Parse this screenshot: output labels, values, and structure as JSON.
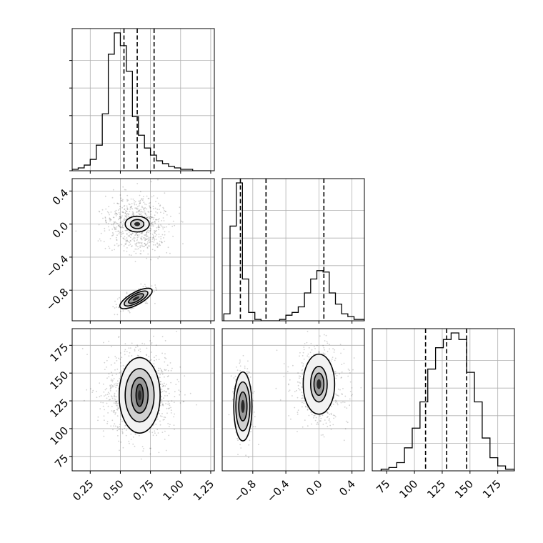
{
  "chart_data": {
    "type": "corner",
    "grid": true,
    "parameters": [
      {
        "range": [
          0.1,
          1.28
        ],
        "ticks": [
          0.25,
          0.5,
          0.75,
          1.0,
          1.25
        ],
        "tick_labels": [
          "0.25",
          "0.50",
          "0.75",
          "1.00",
          "1.25"
        ],
        "quantiles": [
          0.53,
          0.64,
          0.78
        ],
        "hist": {
          "edges": [
            0.1,
            0.15,
            0.2,
            0.25,
            0.3,
            0.35,
            0.4,
            0.45,
            0.5,
            0.55,
            0.6,
            0.65,
            0.7,
            0.75,
            0.8,
            0.85,
            0.9,
            0.95,
            1.0,
            1.05,
            1.1,
            1.15,
            1.2,
            1.25
          ],
          "counts": [
            1,
            2,
            4,
            8,
            18,
            40,
            82,
            97,
            88,
            70,
            38,
            25,
            16,
            11,
            7,
            5,
            3,
            2,
            1,
            1,
            0,
            0,
            0
          ]
        }
      },
      {
        "range": [
          -1.17,
          0.55
        ],
        "ticks": [
          -0.8,
          -0.4,
          0.0,
          0.4
        ],
        "tick_labels": [
          "−0.8",
          "−0.4",
          "0.0",
          "0.4"
        ],
        "quantiles": [
          -0.95,
          -0.64,
          0.06
        ],
        "hist": {
          "edges": [
            -1.15,
            -1.075,
            -1.0,
            -0.925,
            -0.85,
            -0.775,
            -0.7,
            -0.625,
            -0.55,
            -0.475,
            -0.4,
            -0.325,
            -0.25,
            -0.175,
            -0.1,
            -0.025,
            0.05,
            0.125,
            0.2,
            0.275,
            0.35,
            0.425,
            0.5,
            0.55
          ],
          "counts": [
            5,
            68,
            99,
            30,
            6,
            1,
            0,
            0,
            0,
            1,
            4,
            6,
            10,
            20,
            30,
            36,
            35,
            20,
            12,
            5,
            3,
            1,
            1
          ]
        }
      },
      {
        "range": [
          62,
          190
        ],
        "ticks": [
          75,
          100,
          125,
          150,
          175
        ],
        "tick_labels": [
          "75",
          "100",
          "125",
          "150",
          "175"
        ],
        "quantiles": [
          110,
          129,
          147
        ],
        "hist": {
          "edges": [
            70,
            77,
            84,
            91,
            98,
            105,
            112,
            119,
            126,
            133,
            140,
            147,
            154,
            161,
            168,
            175,
            182,
            190
          ],
          "counts": [
            1,
            2,
            5,
            14,
            26,
            42,
            62,
            75,
            80,
            84,
            80,
            60,
            42,
            20,
            8,
            3,
            1
          ]
        }
      }
    ],
    "joint": [
      {
        "x": 0,
        "y": 1,
        "clusters": [
          {
            "cx": 0.64,
            "cy": 0.0,
            "sx": 0.12,
            "sy": 0.17,
            "rot": 0,
            "n": 700,
            "levels": [
              [
                0.1,
                0.095
              ],
              [
                0.055,
                0.055
              ]
            ]
          },
          {
            "cx": 0.63,
            "cy": -0.9,
            "sx": 0.08,
            "sy": 0.05,
            "rot": -0.5,
            "n": 250,
            "levels": [
              [
                0.15,
                0.075
              ],
              [
                0.11,
                0.055
              ],
              [
                0.07,
                0.035
              ]
            ]
          }
        ]
      },
      {
        "x": 0,
        "y": 2,
        "clusters": [
          {
            "cx": 0.66,
            "cy": 130,
            "sx": 0.14,
            "sy": 19,
            "rot": 0,
            "n": 950,
            "levels": [
              [
                0.17,
                34
              ],
              [
                0.12,
                24
              ],
              [
                0.07,
                16
              ],
              [
                0.03,
                10
              ]
            ]
          }
        ]
      },
      {
        "x": 1,
        "y": 2,
        "clusters": [
          {
            "cx": -0.92,
            "cy": 120,
            "sx": 0.05,
            "sy": 15,
            "rot": 0,
            "n": 450,
            "levels": [
              [
                0.11,
                31
              ],
              [
                0.085,
                22
              ],
              [
                0.05,
                13
              ]
            ]
          },
          {
            "cx": 0.0,
            "cy": 140,
            "sx": 0.16,
            "sy": 17,
            "rot": 0,
            "n": 550,
            "levels": [
              [
                0.19,
                27
              ],
              [
                0.1,
                16
              ],
              [
                0.06,
                10
              ]
            ]
          }
        ]
      }
    ]
  }
}
